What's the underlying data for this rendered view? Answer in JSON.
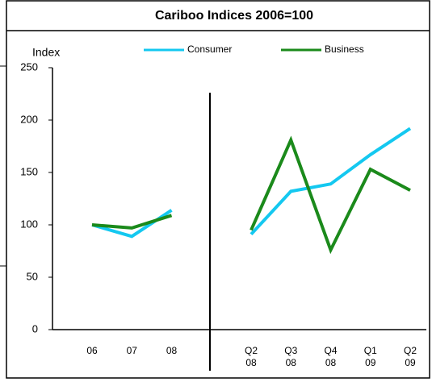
{
  "chart_data": {
    "type": "line",
    "title": "Cariboo Indices   2006=100",
    "y_label": "Index",
    "categories": [
      "06",
      "07",
      "08",
      null,
      "Q2\n08",
      "Q3\n08",
      "Q4\n08",
      "Q1\n09",
      "Q2\n09"
    ],
    "series": [
      {
        "name": "Consumer",
        "color": "#14c8f0",
        "values": [
          100,
          89,
          114,
          null,
          91,
          132,
          139,
          167,
          192
        ]
      },
      {
        "name": "Business",
        "color": "#1b8a1b",
        "values": [
          100,
          97,
          109,
          null,
          95,
          181,
          76,
          153,
          133
        ]
      }
    ],
    "ylim": [
      0,
      250
    ],
    "yticks": [
      0,
      50,
      100,
      150,
      200,
      250
    ],
    "grid": false,
    "legend": "top"
  }
}
